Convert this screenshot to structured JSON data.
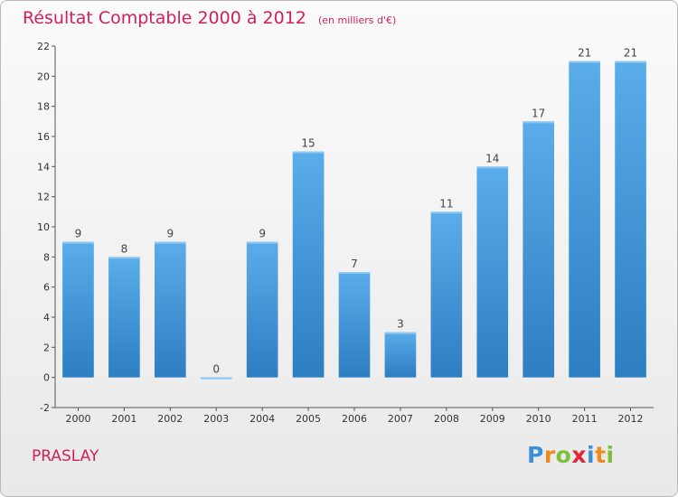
{
  "header": {
    "title": "Résultat Comptable 2000 à 2012",
    "subtitle": "(en milliers d'€)"
  },
  "footer": {
    "place": "PRASLAY",
    "logo_letters": [
      "P",
      "r",
      "o",
      "x",
      "i",
      "t",
      "i"
    ],
    "logo_colors": [
      "#3b8fd6",
      "#f08a1c",
      "#7bbf3a",
      "#e0263a",
      "#3b8fd6",
      "#f08a1c",
      "#7bbf3a"
    ]
  },
  "chart_data": {
    "type": "bar",
    "categories": [
      "2000",
      "2001",
      "2002",
      "2003",
      "2004",
      "2005",
      "2006",
      "2007",
      "2008",
      "2009",
      "2010",
      "2011",
      "2012"
    ],
    "values": [
      9,
      8,
      9,
      0,
      9,
      15,
      7,
      3,
      11,
      14,
      17,
      21,
      21
    ],
    "data_labels": [
      "9",
      "8",
      "9",
      "0",
      "9",
      "15",
      "7",
      "3",
      "11",
      "14",
      "17",
      "21",
      "21"
    ],
    "ylim": [
      -2,
      22
    ],
    "yticks": [
      -2,
      0,
      2,
      4,
      6,
      8,
      10,
      12,
      14,
      16,
      18,
      20,
      22
    ],
    "title": "Résultat Comptable 2000 à 2012",
    "xlabel": "",
    "ylabel": "",
    "grid": false,
    "bar_color": "#3f93d6"
  }
}
